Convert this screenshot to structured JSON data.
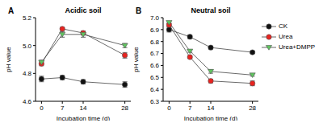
{
  "chart_data": [
    {
      "type": "line",
      "title": "Acidic soil",
      "annotations": [
        "A"
      ],
      "x_label": "Incubation time (d)",
      "y_label": "pH value",
      "x": [
        0,
        7,
        14,
        28
      ],
      "xlim": [
        -2,
        30
      ],
      "xticks": [
        0,
        7,
        14,
        28
      ],
      "ylim": [
        4.6,
        5.2
      ],
      "yticks": [
        4.6,
        4.8,
        {
          "value": 5,
          "label": "5.0"
        },
        5.2
      ],
      "grid": false,
      "series": [
        {
          "name": "CK",
          "color": "#111111",
          "marker": "circle",
          "values": [
            4.76,
            4.77,
            4.74,
            4.72
          ],
          "errors": [
            0.02,
            0.015,
            0.015,
            0.02
          ]
        },
        {
          "name": "Urea",
          "color": "#e8231f",
          "marker": "circle",
          "values": [
            4.87,
            5.12,
            5.09,
            4.93
          ],
          "errors": [
            0.015,
            0.01,
            0.015,
            0.02
          ]
        },
        {
          "name": "Urea+DMPP",
          "color": "#5fc45f",
          "marker": "triangle_down",
          "values": [
            4.88,
            5.08,
            5.08,
            5.0
          ],
          "errors": [
            0.015,
            0.02,
            0.02,
            0.015
          ]
        }
      ]
    },
    {
      "type": "line",
      "title": "Neutral soil",
      "annotations": [
        "B"
      ],
      "x_label": "Incubation time (d)",
      "y_label": "pH value",
      "x": [
        0,
        7,
        14,
        28
      ],
      "xlim": [
        -2,
        30
      ],
      "xticks": [
        0,
        7,
        14,
        28
      ],
      "ylim": [
        6.3,
        7.0
      ],
      "yticks": [
        6.3,
        6.4,
        6.5,
        6.6,
        6.7,
        6.8,
        6.9,
        {
          "value": 7,
          "label": "7.0"
        }
      ],
      "grid": false,
      "legend": "right",
      "series": [
        {
          "name": "CK",
          "color": "#111111",
          "marker": "circle",
          "values": [
            6.9,
            6.84,
            6.75,
            6.71
          ],
          "errors": [
            0.02,
            0.015,
            0.01,
            0.01
          ]
        },
        {
          "name": "Urea",
          "color": "#e8231f",
          "marker": "circle",
          "values": [
            6.94,
            6.67,
            6.47,
            6.45
          ],
          "errors": [
            0.015,
            0.01,
            0.015,
            0.02
          ]
        },
        {
          "name": "Urea+DMPP",
          "color": "#5fc45f",
          "marker": "triangle_down",
          "values": [
            6.96,
            6.72,
            6.55,
            6.52
          ],
          "errors": [
            0.01,
            0.01,
            0.015,
            0.01
          ]
        }
      ]
    }
  ]
}
